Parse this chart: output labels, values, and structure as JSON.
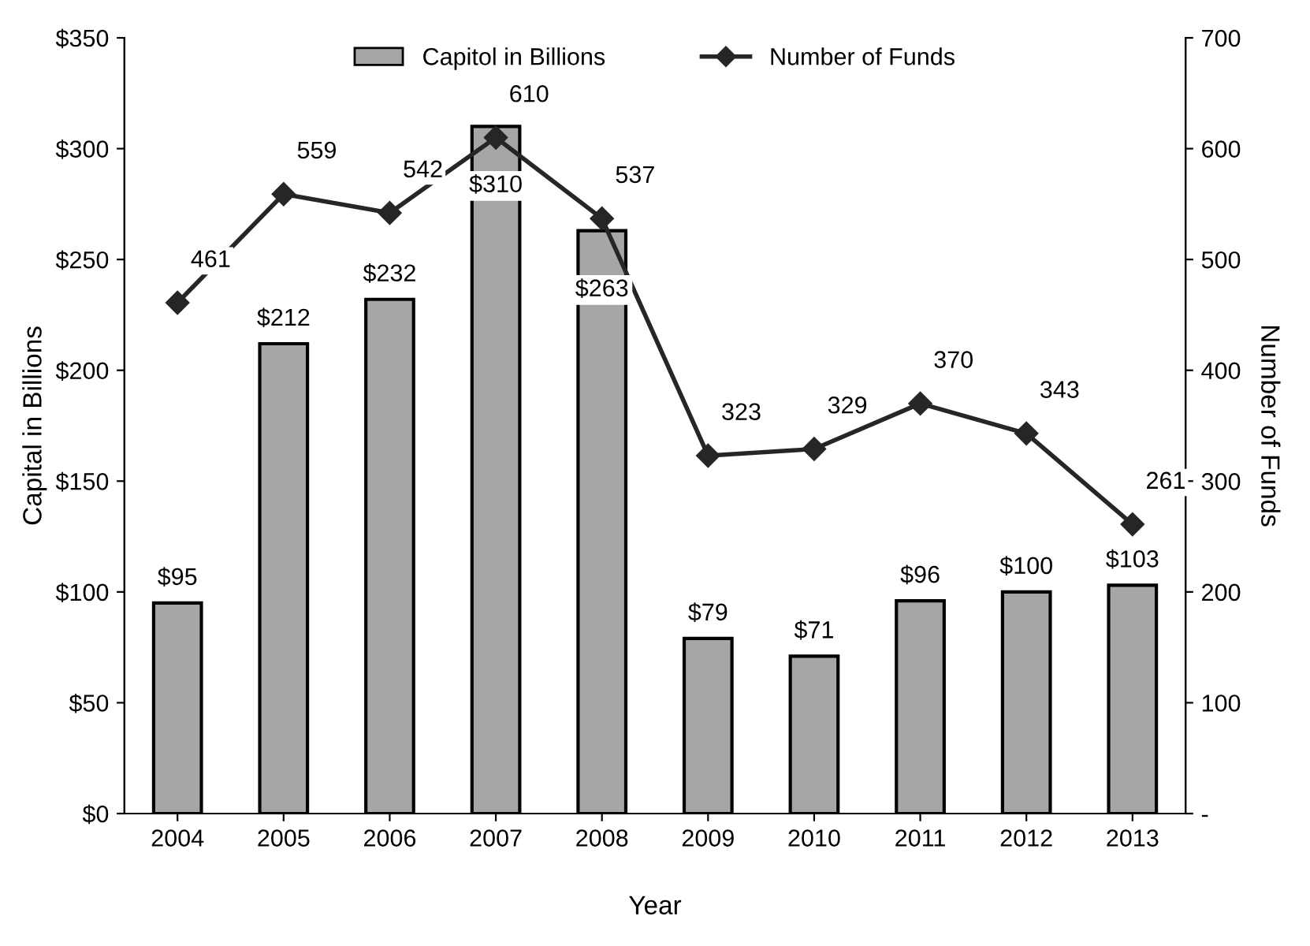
{
  "chart_data": {
    "type": "bar",
    "categories": [
      "2004",
      "2005",
      "2006",
      "2007",
      "2008",
      "2009",
      "2010",
      "2011",
      "2012",
      "2013"
    ],
    "series": [
      {
        "name": "Capitol in Billions",
        "color": "#a6a6a6",
        "values": [
          95,
          212,
          232,
          310,
          263,
          79,
          71,
          96,
          100,
          103
        ],
        "value_labels": [
          "$95",
          "$212",
          "$232",
          "$310",
          "$263",
          "$79",
          "$71",
          "$96",
          "$100",
          "$103"
        ]
      },
      {
        "name": "Number of Funds",
        "type": "line",
        "axis": "y2",
        "color": "#262626",
        "marker": "diamond",
        "line_style": "solid",
        "values": [
          461,
          559,
          542,
          610,
          537,
          323,
          329,
          370,
          343,
          261
        ],
        "value_labels": [
          "461",
          "559",
          "542",
          "610",
          "537",
          "323",
          "329",
          "370",
          "343",
          "261"
        ]
      }
    ],
    "xlabel": "Year",
    "ylabel": "Capital in Billions",
    "y2label": "Number of Funds",
    "ylim": [
      0,
      350
    ],
    "yticks": [
      {
        "value": 0,
        "label": "$0"
      },
      {
        "value": 50,
        "label": "$50"
      },
      {
        "value": 100,
        "label": "$100"
      },
      {
        "value": 150,
        "label": "$150"
      },
      {
        "value": 200,
        "label": "$200"
      },
      {
        "value": 250,
        "label": "$250"
      },
      {
        "value": 300,
        "label": "$300"
      },
      {
        "value": 350,
        "label": "$350"
      }
    ],
    "y2lim": [
      0,
      700
    ],
    "y2ticks": [
      {
        "value": 0,
        "label": "-"
      },
      100,
      200,
      300,
      400,
      500,
      600,
      700
    ],
    "legend": "top",
    "grid": false
  }
}
